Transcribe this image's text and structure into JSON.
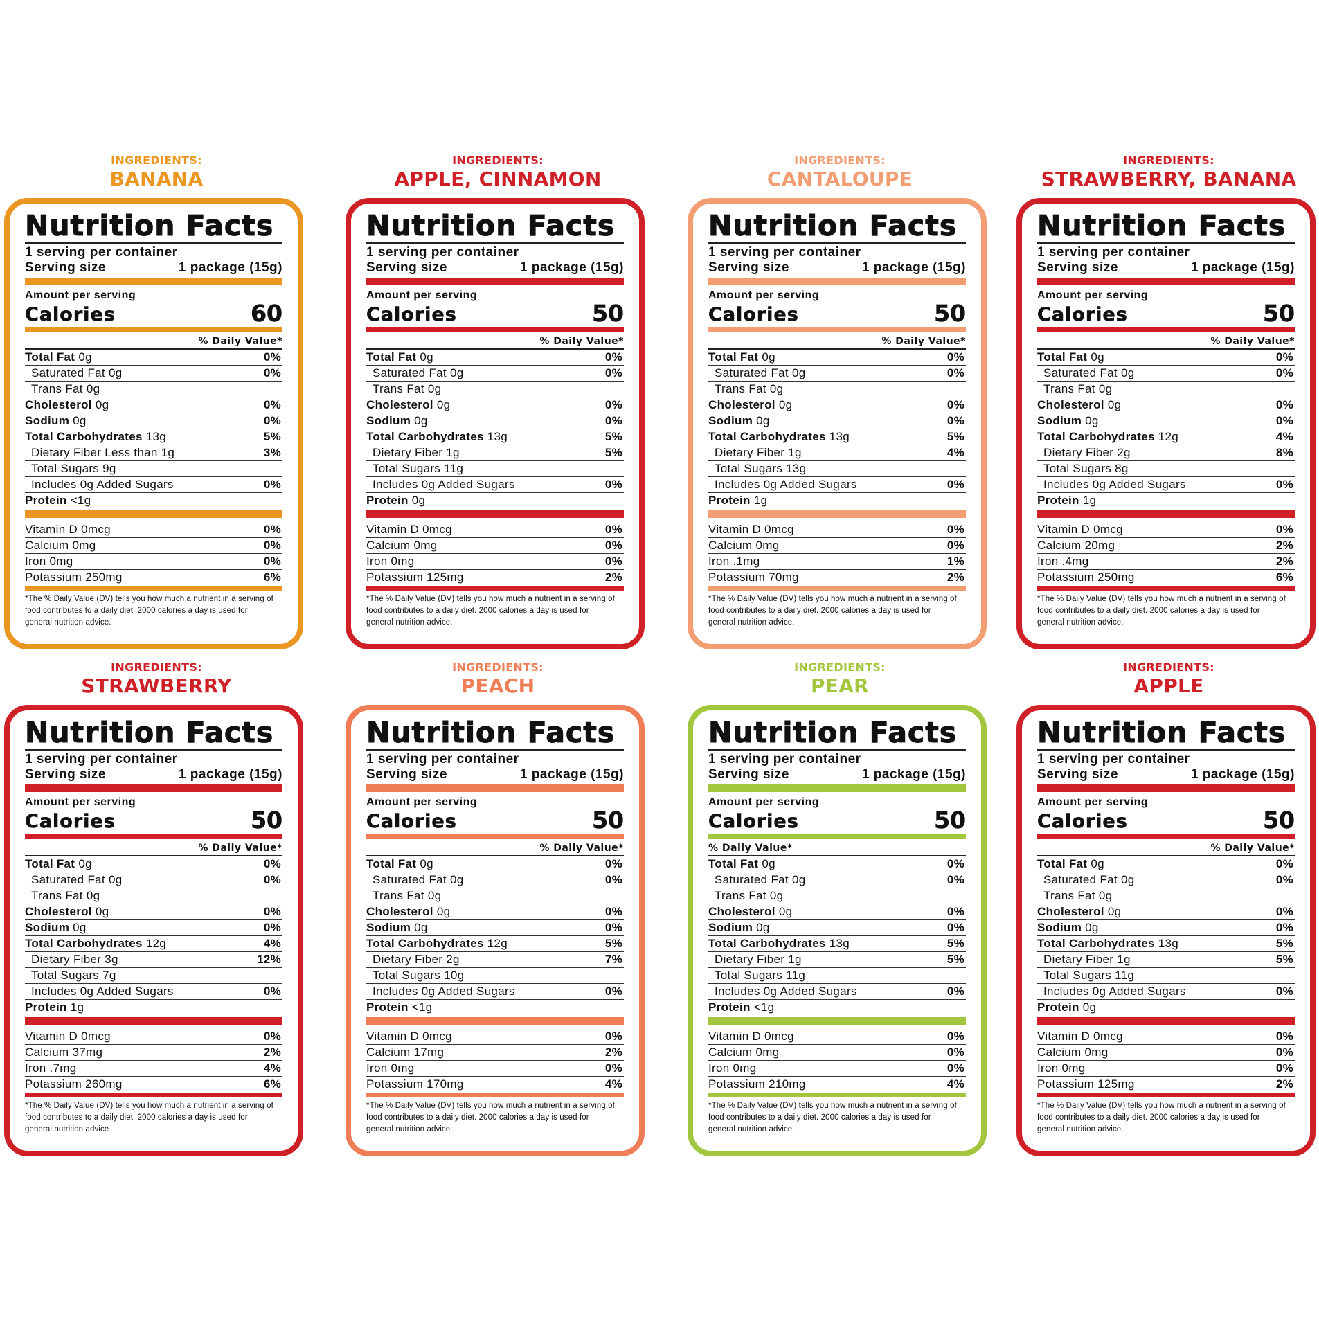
{
  "labels": {
    "ingredients": "INGREDIENTS:",
    "title": "Nutrition Facts",
    "servings": "1 serving per container",
    "serving_size": "Serving size",
    "serving_value": "1 package (15g)",
    "amount_per_serving": "Amount per serving",
    "calories": "Calories",
    "daily_value": "% Daily Value*",
    "total_fat": "Total Fat",
    "saturated_fat": "Saturated Fat",
    "trans_fat": "Trans Fat",
    "cholesterol": "Cholesterol",
    "sodium": "Sodium",
    "total_carb": "Total Carbohydrates",
    "dietary_fiber": "Dietary Fiber",
    "total_sugars": "Total Sugars",
    "added_sugars_pre": "Includes",
    "added_sugars_post": "Added Sugars",
    "protein": "Protein",
    "vitamin_d": "Vitamin D",
    "calcium": "Calcium",
    "iron": "Iron",
    "potassium": "Potassium",
    "footnote": "*The % Daily Value (DV) tells you how much a nutrient in a serving of food contributes to a daily diet. 2000 calories a day is used for general nutrition advice."
  },
  "labels_list": [
    {
      "ingredient": "BANANA",
      "color": "#ea9620",
      "header_color": "#ea9620",
      "calories": "60",
      "fat": "0g",
      "fat_pct": "0%",
      "sat": "0g",
      "sat_pct": "0%",
      "trans": "0g",
      "chol": "0g",
      "chol_pct": "0%",
      "sodium": "0g",
      "sodium_pct": "0%",
      "carb": "13g",
      "carb_pct": "5%",
      "fiber": "Less than 1g",
      "fiber_pct": "3%",
      "sugars": "9g",
      "added": "0g",
      "added_pct": "0%",
      "protein": "<1g",
      "vitd": "0mcg",
      "vitd_pct": "0%",
      "calcium": "0mg",
      "calcium_pct": "0%",
      "iron": "0mg",
      "iron_pct": "0%",
      "potassium": "250mg",
      "potassium_pct": "6%"
    },
    {
      "ingredient": "APPLE, CINNAMON",
      "color": "#cf2027",
      "header_color": "#cf2027",
      "calories": "50",
      "fat": "0g",
      "fat_pct": "0%",
      "sat": "0g",
      "sat_pct": "0%",
      "trans": "0g",
      "chol": "0g",
      "chol_pct": "0%",
      "sodium": "0g",
      "sodium_pct": "0%",
      "carb": "13g",
      "carb_pct": "5%",
      "fiber": "1g",
      "fiber_pct": "5%",
      "sugars": "11g",
      "added": "0g",
      "added_pct": "0%",
      "protein": "0g",
      "vitd": "0mcg",
      "vitd_pct": "0%",
      "calcium": "0mg",
      "calcium_pct": "0%",
      "iron": "0mg",
      "iron_pct": "0%",
      "potassium": "125mg",
      "potassium_pct": "2%"
    },
    {
      "ingredient": "CANTALOUPE",
      "color": "#f39e72",
      "header_color": "#f39e72",
      "calories": "50",
      "fat": "0g",
      "fat_pct": "0%",
      "sat": "0g",
      "sat_pct": "0%",
      "trans": "0g",
      "chol": "0g",
      "chol_pct": "0%",
      "sodium": "0g",
      "sodium_pct": "0%",
      "carb": "13g",
      "carb_pct": "5%",
      "fiber": "1g",
      "fiber_pct": "4%",
      "sugars": "13g",
      "added": "0g",
      "added_pct": "0%",
      "protein": "1g",
      "vitd": "0mcg",
      "vitd_pct": "0%",
      "calcium": "0mg",
      "calcium_pct": "0%",
      "iron": ".1mg",
      "iron_pct": "1%",
      "potassium": "70mg",
      "potassium_pct": "2%"
    },
    {
      "ingredient": "STRAWBERRY, BANANA",
      "color": "#cf2027",
      "header_color": "#cf2027",
      "calories": "50",
      "fat": "0g",
      "fat_pct": "0%",
      "sat": "0g",
      "sat_pct": "0%",
      "trans": "0g",
      "chol": "0g",
      "chol_pct": "0%",
      "sodium": "0g",
      "sodium_pct": "0%",
      "carb": "12g",
      "carb_pct": "4%",
      "fiber": "2g",
      "fiber_pct": "8%",
      "sugars": "8g",
      "added": "0g",
      "added_pct": "0%",
      "protein": "1g",
      "vitd": "0mcg",
      "vitd_pct": "0%",
      "calcium": "20mg",
      "calcium_pct": "2%",
      "iron": ".4mg",
      "iron_pct": "2%",
      "potassium": "250mg",
      "potassium_pct": "6%"
    },
    {
      "ingredient": "STRAWBERRY",
      "color": "#cf2027",
      "header_color": "#cf2027",
      "calories": "50",
      "fat": "0g",
      "fat_pct": "0%",
      "sat": "0g",
      "sat_pct": "0%",
      "trans": "0g",
      "chol": "0g",
      "chol_pct": "0%",
      "sodium": "0g",
      "sodium_pct": "0%",
      "carb": "12g",
      "carb_pct": "4%",
      "fiber": "3g",
      "fiber_pct": "12%",
      "sugars": "7g",
      "added": "0g",
      "added_pct": "0%",
      "protein": "1g",
      "vitd": "0mcg",
      "vitd_pct": "0%",
      "calcium": "37mg",
      "calcium_pct": "2%",
      "iron": ".7mg",
      "iron_pct": "4%",
      "potassium": "260mg",
      "potassium_pct": "6%"
    },
    {
      "ingredient": "PEACH",
      "color": "#ef7d55",
      "header_color": "#ef7d55",
      "calories": "50",
      "fat": "0g",
      "fat_pct": "0%",
      "sat": "0g",
      "sat_pct": "0%",
      "trans": "0g",
      "chol": "0g",
      "chol_pct": "0%",
      "sodium": "0g",
      "sodium_pct": "0%",
      "carb": "12g",
      "carb_pct": "5%",
      "fiber": "2g",
      "fiber_pct": "7%",
      "sugars": "10g",
      "added": "0g",
      "added_pct": "0%",
      "protein": "<1g",
      "vitd": "0mcg",
      "vitd_pct": "0%",
      "calcium": "17mg",
      "calcium_pct": "2%",
      "iron": "0mg",
      "iron_pct": "0%",
      "potassium": "170mg",
      "potassium_pct": "4%"
    },
    {
      "ingredient": "PEAR",
      "color": "#a2c73f",
      "header_color": "#a2c73f",
      "calories": "50",
      "fat": "0g",
      "fat_pct": "0%",
      "sat": "0g",
      "sat_pct": "0%",
      "trans": "0g",
      "chol": "0g",
      "chol_pct": "0%",
      "sodium": "0g",
      "sodium_pct": "0%",
      "carb": "13g",
      "carb_pct": "5%",
      "fiber": "1g",
      "fiber_pct": "5%",
      "sugars": "11g",
      "added": "0g",
      "added_pct": "0%",
      "protein": "<1g",
      "vitd": "0mcg",
      "vitd_pct": "0%",
      "calcium": "0mg",
      "calcium_pct": "0%",
      "iron": "0mg",
      "iron_pct": "0%",
      "potassium": "210mg",
      "potassium_pct": "4%"
    },
    {
      "ingredient": "APPLE",
      "color": "#cf2027",
      "header_color": "#cf2027",
      "calories": "50",
      "fat": "0g",
      "fat_pct": "0%",
      "sat": "0g",
      "sat_pct": "0%",
      "trans": "0g",
      "chol": "0g",
      "chol_pct": "0%",
      "sodium": "0g",
      "sodium_pct": "0%",
      "carb": "13g",
      "carb_pct": "5%",
      "fiber": "1g",
      "fiber_pct": "5%",
      "sugars": "11g",
      "added": "0g",
      "added_pct": "0%",
      "protein": "0g",
      "vitd": "0mcg",
      "vitd_pct": "0%",
      "calcium": "0mg",
      "calcium_pct": "0%",
      "iron": "0mg",
      "iron_pct": "0%",
      "potassium": "125mg",
      "potassium_pct": "2%"
    }
  ]
}
